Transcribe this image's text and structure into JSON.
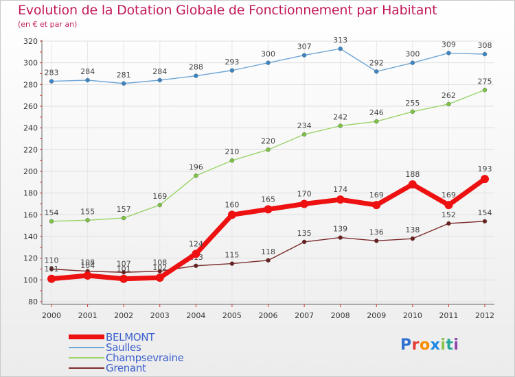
{
  "title": "Evolution de la Dotation Globale de Fonctionnement par Habitant",
  "subtitle": "(en € et par an)",
  "logo": {
    "chars": [
      "P",
      "r",
      "o",
      "x",
      "i",
      "t",
      "i"
    ],
    "colors": [
      "#2f6fd0",
      "#e53935",
      "#fb8c00",
      "#1e88e5",
      "#8bc34a",
      "#26a69a",
      "#8e44ad"
    ]
  },
  "chart_data": {
    "type": "line",
    "x": [
      "2000",
      "2001",
      "2002",
      "2003",
      "2004",
      "2005",
      "2006",
      "2007",
      "2008",
      "2009",
      "2010",
      "2011",
      "2012"
    ],
    "ylim": [
      80,
      320
    ],
    "yticks": [
      80,
      100,
      120,
      140,
      160,
      180,
      200,
      220,
      240,
      260,
      280,
      300,
      320
    ],
    "grid": true,
    "legend_position": "bottom-left",
    "series": [
      {
        "name": "Saulles",
        "color": "#6ea6d6",
        "dot": "#3b86c6",
        "width": 1.4,
        "values": [
          283,
          284,
          281,
          284,
          288,
          293,
          300,
          307,
          313,
          292,
          300,
          309,
          308
        ]
      },
      {
        "name": "Champsevraine",
        "color": "#9ad46a",
        "dot": "#7cc243",
        "width": 1.4,
        "values": [
          154,
          155,
          157,
          169,
          196,
          210,
          220,
          234,
          242,
          246,
          255,
          262,
          275
        ]
      },
      {
        "name": "Grenant",
        "color": "#7a2a2a",
        "dot": "#6b1f1f",
        "width": 1.4,
        "values": [
          110,
          108,
          107,
          108,
          113,
          115,
          118,
          135,
          139,
          136,
          138,
          152,
          154
        ]
      },
      {
        "name": "BELMONT",
        "color": "#ee1111",
        "dot": "#ee1111",
        "width": 7,
        "values": [
          101,
          104,
          101,
          102,
          124,
          160,
          165,
          170,
          174,
          169,
          188,
          169,
          193
        ]
      }
    ],
    "legend_order": [
      "BELMONT",
      "Saulles",
      "Champsevraine",
      "Grenant"
    ]
  }
}
